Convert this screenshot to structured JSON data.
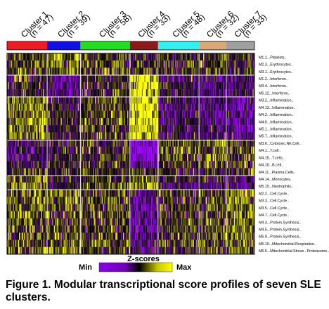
{
  "chart_data": {
    "type": "heatmap",
    "clusters": [
      {
        "name": "Cluster 1",
        "n": "(n = 47)",
        "color": "#ee1c24"
      },
      {
        "name": "Cluster 2",
        "n": "(n = 39)",
        "color": "#1010e6"
      },
      {
        "name": "Cluster 3",
        "n": "(n = 58)",
        "color": "#22dd22"
      },
      {
        "name": "Cluster 4",
        "n": "(n = 33)",
        "color": "#8b1a1a"
      },
      {
        "name": "Cluster 5",
        "n": "(n = 48)",
        "color": "#33f0f0"
      },
      {
        "name": "Cluster 6",
        "n": "(n = 32)",
        "color": "#d8a878"
      },
      {
        "name": "Cluster 7",
        "n": "(n = 33)",
        "color": "#a0a0a0"
      }
    ],
    "modules": [
      {
        "label": "M1.1...Platelets..",
        "means": [
          0.1,
          0.6,
          0.2,
          -0.1,
          0.0,
          0.1,
          0.1
        ]
      },
      {
        "label": "M2.3...Erythrocytes..",
        "means": [
          0.2,
          0.7,
          0.2,
          0.0,
          0.0,
          0.1,
          0.2
        ]
      },
      {
        "label": "M3.1...Erythrocytes..",
        "means": [
          0.2,
          0.5,
          0.3,
          0.0,
          0.0,
          0.1,
          0.1
        ]
      },
      {
        "label": "M1.2...Interferon..",
        "means": [
          0.0,
          -0.6,
          -0.1,
          1.2,
          -0.4,
          -0.6,
          -0.5
        ]
      },
      {
        "label": "M3.4...Interferon..",
        "means": [
          0.0,
          -0.5,
          -0.1,
          1.2,
          -0.4,
          -0.5,
          -0.5
        ]
      },
      {
        "label": "M5.12...Interferon..",
        "means": [
          0.0,
          -0.5,
          -0.1,
          1.1,
          -0.3,
          -0.5,
          -0.4
        ]
      },
      {
        "label": "M3.2...Inflammation..",
        "means": [
          0.6,
          -0.2,
          0.2,
          1.1,
          -0.4,
          -0.6,
          -0.6
        ]
      },
      {
        "label": "M4.13...Inflammation..",
        "means": [
          0.5,
          -0.2,
          0.2,
          1.1,
          -0.4,
          -0.6,
          -0.6
        ]
      },
      {
        "label": "M4.2...Inflammation..",
        "means": [
          0.5,
          -0.1,
          0.2,
          1.1,
          -0.4,
          -0.5,
          -0.6
        ]
      },
      {
        "label": "M4.6...Inflammation..",
        "means": [
          0.6,
          -0.1,
          0.3,
          1.1,
          -0.4,
          -0.6,
          -0.6
        ]
      },
      {
        "label": "M5.1...Inflammation..",
        "means": [
          0.5,
          -0.2,
          0.2,
          1.0,
          -0.4,
          -0.5,
          -0.6
        ]
      },
      {
        "label": "M5.7...Inflammation..",
        "means": [
          0.5,
          -0.2,
          0.2,
          1.0,
          -0.3,
          -0.5,
          -0.5
        ]
      },
      {
        "label": "M3.6...Cytotoxic.NK.Cell..",
        "means": [
          -0.3,
          -0.1,
          0.0,
          -1.1,
          0.3,
          0.3,
          0.2
        ]
      },
      {
        "label": "M4.1...T.cell..",
        "means": [
          -0.4,
          -0.2,
          0.0,
          -1.2,
          0.3,
          0.4,
          0.3
        ]
      },
      {
        "label": "M4.15...T.cells..",
        "means": [
          -0.4,
          -0.2,
          0.0,
          -1.2,
          0.3,
          0.4,
          0.3
        ]
      },
      {
        "label": "M4.10...B.cell..",
        "means": [
          -0.2,
          0.1,
          0.0,
          -0.9,
          0.2,
          0.2,
          0.2
        ]
      },
      {
        "label": "M4.11...Plasma.Cells..",
        "means": [
          0.1,
          -0.1,
          0.0,
          0.2,
          -0.1,
          0.0,
          0.1
        ]
      },
      {
        "label": "M4.14...Monocytes..",
        "means": [
          0.3,
          -0.2,
          0.1,
          0.4,
          -0.2,
          -0.3,
          -0.3
        ]
      },
      {
        "label": "M5.15...Neutrophils..",
        "means": [
          0.6,
          -0.2,
          0.2,
          0.7,
          -0.4,
          -0.5,
          -0.5
        ]
      },
      {
        "label": "M2.2...Cell.Cycle..",
        "means": [
          0.3,
          0.4,
          0.2,
          -0.6,
          0.0,
          0.2,
          0.6
        ]
      },
      {
        "label": "M3.3...Cell.Cycle..",
        "means": [
          0.3,
          0.4,
          0.2,
          -0.7,
          0.0,
          0.2,
          0.6
        ]
      },
      {
        "label": "M3.5...Cell.Cycle..",
        "means": [
          0.2,
          0.4,
          0.2,
          -0.8,
          0.1,
          0.2,
          0.5
        ]
      },
      {
        "label": "M4.7...Cell.Cycle..",
        "means": [
          0.3,
          0.4,
          0.2,
          -0.7,
          0.0,
          0.2,
          0.6
        ]
      },
      {
        "label": "M4.3...Protein.Synthesis..",
        "means": [
          0.2,
          0.3,
          0.1,
          -0.8,
          0.1,
          0.3,
          0.6
        ]
      },
      {
        "label": "M4.5...Protein.Synthesis..",
        "means": [
          0.2,
          0.3,
          0.1,
          -0.8,
          0.1,
          0.3,
          0.6
        ]
      },
      {
        "label": "M5.9...Protein.Synthesis..",
        "means": [
          0.2,
          0.3,
          0.1,
          -0.7,
          0.1,
          0.3,
          0.5
        ]
      },
      {
        "label": "M5.10...Mitochondrial.Respiration..",
        "means": [
          0.2,
          0.4,
          0.2,
          -0.6,
          0.1,
          0.2,
          0.5
        ]
      },
      {
        "label": "M6.6...Mitochondrial.Stress...Proteasome..",
        "means": [
          0.2,
          0.4,
          0.2,
          -0.6,
          0.0,
          0.2,
          0.5
        ]
      }
    ],
    "legend": {
      "title": "Z-scores",
      "min_label": "Min",
      "max_label": "Max",
      "colors": [
        "#8a00e6",
        "#7000b8",
        "#000000",
        "#c8c800",
        "#ffff00"
      ]
    }
  },
  "caption": "Figure 1. Modular transcriptional score profiles of seven SLE clusters."
}
